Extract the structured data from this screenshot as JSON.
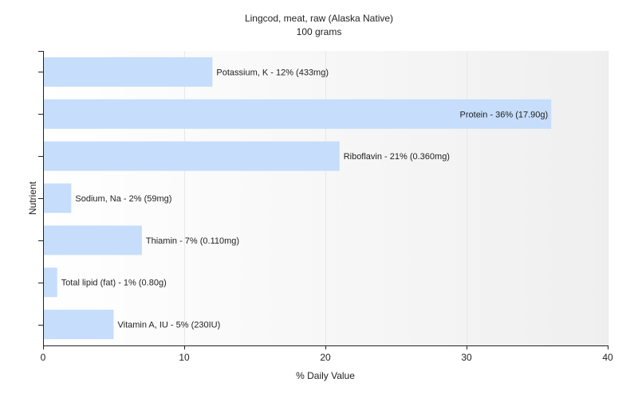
{
  "chart_data": {
    "type": "bar",
    "orientation": "horizontal",
    "title": "Lingcod, meat, raw (Alaska Native)",
    "subtitle": "100 grams",
    "xlabel": "% Daily Value",
    "ylabel": "Nutrient",
    "xlim": [
      0,
      40
    ],
    "xticks": [
      0,
      10,
      20,
      30,
      40
    ],
    "grid": true,
    "bar_color": "#c6ddfb",
    "categories": [
      "Potassium, K",
      "Protein",
      "Riboflavin",
      "Sodium, Na",
      "Thiamin",
      "Total lipid (fat)",
      "Vitamin A, IU"
    ],
    "values": [
      12,
      36,
      21,
      2,
      7,
      1,
      5
    ],
    "data_labels": [
      "Potassium, K - 12% (433mg)",
      "Protein - 36% (17.90g)",
      "Riboflavin - 21% (0.360mg)",
      "Sodium, Na - 2% (59mg)",
      "Thiamin - 7% (0.110mg)",
      "Total lipid (fat) - 1% (0.80g)",
      "Vitamin A, IU - 5% (230IU)"
    ]
  }
}
